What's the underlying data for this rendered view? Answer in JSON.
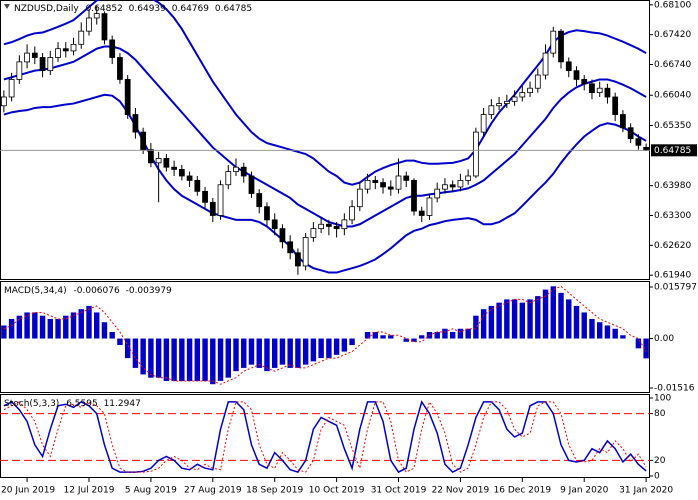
{
  "chart_data": [
    {
      "type": "candlestick",
      "title": "NZDUSD,Daily",
      "last_bar": {
        "open": 0.64852,
        "high": 0.64939,
        "low": 0.64769,
        "close": 0.64785
      },
      "categories": [
        null,
        null,
        null,
        "20 Jun 2019",
        null,
        null,
        null,
        null,
        null,
        null,
        null,
        "12 Jul 2019",
        null,
        null,
        null,
        null,
        null,
        null,
        null,
        "5 Aug 2019",
        null,
        null,
        null,
        null,
        null,
        null,
        null,
        "27 Aug 2019",
        null,
        null,
        null,
        null,
        null,
        null,
        null,
        "18 Sep 2019",
        null,
        null,
        null,
        null,
        null,
        null,
        null,
        "10 Oct 2019",
        null,
        null,
        null,
        null,
        null,
        null,
        null,
        "31 Oct 2019",
        null,
        null,
        null,
        null,
        null,
        null,
        null,
        "22 Nov 2019",
        null,
        null,
        null,
        null,
        null,
        null,
        null,
        "16 Dec 2019",
        null,
        null,
        null,
        null,
        null,
        null,
        null,
        "9 Jan 2020",
        null,
        null,
        null,
        null,
        null,
        null,
        null,
        "31 Jan 2020"
      ],
      "open": [
        0.658,
        0.66,
        0.664,
        0.668,
        0.67,
        0.669,
        0.666,
        0.669,
        0.671,
        0.6705,
        0.672,
        0.675,
        0.678,
        0.679,
        0.673,
        0.669,
        0.664,
        0.656,
        0.652,
        0.648,
        0.645,
        0.646,
        0.644,
        0.6435,
        0.642,
        0.641,
        0.6385,
        0.636,
        0.633,
        0.64,
        0.643,
        0.644,
        0.642,
        0.638,
        0.635,
        0.632,
        0.63,
        0.627,
        0.6245,
        0.6215,
        0.628,
        0.63,
        0.631,
        0.6305,
        0.63,
        0.632,
        0.635,
        0.639,
        0.641,
        0.6405,
        0.6395,
        0.639,
        0.642,
        0.641,
        0.634,
        0.633,
        0.637,
        0.639,
        0.64,
        0.6395,
        0.641,
        0.642,
        0.652,
        0.656,
        0.658,
        0.6585,
        0.659,
        0.66,
        0.661,
        0.662,
        0.665,
        0.67,
        0.675,
        0.668,
        0.666,
        0.664,
        0.663,
        0.661,
        0.662,
        0.66,
        0.656,
        0.653,
        0.6505,
        0.64852
      ],
      "high": [
        0.6615,
        0.6655,
        0.6695,
        0.672,
        0.6715,
        0.67,
        0.6705,
        0.6725,
        0.6725,
        0.6735,
        0.677,
        0.68,
        0.6808,
        0.6795,
        0.674,
        0.67,
        0.665,
        0.6575,
        0.653,
        0.6495,
        0.6475,
        0.647,
        0.6455,
        0.6445,
        0.643,
        0.642,
        0.6395,
        0.637,
        0.641,
        0.6445,
        0.646,
        0.645,
        0.643,
        0.639,
        0.636,
        0.6335,
        0.631,
        0.6285,
        0.6255,
        0.629,
        0.6315,
        0.6325,
        0.632,
        0.6315,
        0.6335,
        0.6365,
        0.6405,
        0.6425,
        0.642,
        0.6415,
        0.641,
        0.646,
        0.643,
        0.6415,
        0.635,
        0.638,
        0.6405,
        0.6415,
        0.641,
        0.6425,
        0.6435,
        0.653,
        0.6575,
        0.6595,
        0.66,
        0.6605,
        0.6615,
        0.6625,
        0.6635,
        0.6665,
        0.672,
        0.676,
        0.6755,
        0.669,
        0.667,
        0.665,
        0.664,
        0.6635,
        0.663,
        0.661,
        0.657,
        0.654,
        0.6515,
        0.64939
      ],
      "low": [
        0.6565,
        0.659,
        0.663,
        0.6665,
        0.6675,
        0.6645,
        0.665,
        0.668,
        0.669,
        0.6695,
        0.671,
        0.674,
        0.6765,
        0.672,
        0.6675,
        0.663,
        0.655,
        0.6505,
        0.647,
        0.644,
        0.636,
        0.643,
        0.642,
        0.641,
        0.6395,
        0.6375,
        0.6345,
        0.6315,
        0.632,
        0.639,
        0.642,
        0.6405,
        0.637,
        0.6335,
        0.6305,
        0.6285,
        0.6255,
        0.623,
        0.6195,
        0.6205,
        0.627,
        0.629,
        0.6285,
        0.628,
        0.6285,
        0.631,
        0.634,
        0.638,
        0.639,
        0.638,
        0.6375,
        0.638,
        0.6395,
        0.633,
        0.6315,
        0.632,
        0.636,
        0.638,
        0.6385,
        0.6385,
        0.64,
        0.6415,
        0.651,
        0.655,
        0.657,
        0.6575,
        0.658,
        0.659,
        0.66,
        0.661,
        0.664,
        0.669,
        0.6665,
        0.6645,
        0.6625,
        0.6615,
        0.6595,
        0.66,
        0.6585,
        0.6545,
        0.652,
        0.6495,
        0.648,
        0.64769
      ],
      "close": [
        0.66,
        0.664,
        0.668,
        0.67,
        0.669,
        0.666,
        0.669,
        0.671,
        0.6705,
        0.672,
        0.675,
        0.678,
        0.679,
        0.673,
        0.669,
        0.664,
        0.656,
        0.652,
        0.648,
        0.645,
        0.646,
        0.644,
        0.6435,
        0.642,
        0.641,
        0.6385,
        0.636,
        0.633,
        0.64,
        0.643,
        0.644,
        0.642,
        0.638,
        0.635,
        0.632,
        0.63,
        0.627,
        0.6245,
        0.6215,
        0.628,
        0.63,
        0.631,
        0.6305,
        0.63,
        0.632,
        0.635,
        0.639,
        0.641,
        0.6405,
        0.6395,
        0.639,
        0.642,
        0.641,
        0.634,
        0.633,
        0.637,
        0.639,
        0.64,
        0.6395,
        0.641,
        0.642,
        0.652,
        0.656,
        0.658,
        0.6585,
        0.659,
        0.66,
        0.661,
        0.662,
        0.665,
        0.67,
        0.675,
        0.668,
        0.666,
        0.664,
        0.663,
        0.661,
        0.662,
        0.66,
        0.656,
        0.653,
        0.6505,
        0.649,
        0.64785
      ],
      "bollinger": {
        "color": "#0000c8",
        "upper": [
          0.672,
          0.6725,
          0.6732,
          0.674,
          0.6745,
          0.6747,
          0.6753,
          0.676,
          0.6767,
          0.6775,
          0.679,
          0.6805,
          0.682,
          0.6825,
          0.6827,
          0.683,
          0.6835,
          0.6835,
          0.683,
          0.6825,
          0.6815,
          0.68,
          0.678,
          0.6755,
          0.6725,
          0.6695,
          0.6665,
          0.6635,
          0.661,
          0.6585,
          0.656,
          0.654,
          0.652,
          0.6505,
          0.6495,
          0.649,
          0.6485,
          0.648,
          0.6475,
          0.647,
          0.646,
          0.6445,
          0.643,
          0.642,
          0.6405,
          0.64,
          0.6405,
          0.6418,
          0.643,
          0.6438,
          0.6445,
          0.645,
          0.6455,
          0.6455,
          0.645,
          0.6448,
          0.6448,
          0.6449,
          0.645,
          0.6454,
          0.646,
          0.648,
          0.651,
          0.654,
          0.6565,
          0.6585,
          0.6605,
          0.6628,
          0.665,
          0.6672,
          0.6695,
          0.6725,
          0.674,
          0.6748,
          0.6752,
          0.675,
          0.6747,
          0.6745,
          0.674,
          0.6733,
          0.6726,
          0.6718,
          0.671,
          0.67
        ],
        "middle": [
          0.664,
          0.6645,
          0.665,
          0.6655,
          0.666,
          0.6662,
          0.6665,
          0.667,
          0.6675,
          0.668,
          0.669,
          0.67,
          0.671,
          0.6715,
          0.6715,
          0.671,
          0.67,
          0.6685,
          0.6665,
          0.6645,
          0.6625,
          0.6605,
          0.6585,
          0.6565,
          0.6545,
          0.6525,
          0.6505,
          0.6485,
          0.647,
          0.6455,
          0.644,
          0.643,
          0.642,
          0.641,
          0.64,
          0.639,
          0.638,
          0.637,
          0.6355,
          0.6345,
          0.6335,
          0.6325,
          0.6315,
          0.631,
          0.6305,
          0.6305,
          0.631,
          0.632,
          0.633,
          0.634,
          0.635,
          0.636,
          0.637,
          0.6375,
          0.6375,
          0.6378,
          0.638,
          0.6383,
          0.6385,
          0.6388,
          0.6392,
          0.64,
          0.641,
          0.6425,
          0.644,
          0.6455,
          0.647,
          0.649,
          0.651,
          0.653,
          0.655,
          0.6575,
          0.6595,
          0.661,
          0.6622,
          0.663,
          0.6635,
          0.664,
          0.664,
          0.6635,
          0.6628,
          0.662,
          0.661,
          0.66
        ],
        "lower": [
          0.656,
          0.6565,
          0.6568,
          0.657,
          0.6575,
          0.6577,
          0.6577,
          0.658,
          0.6583,
          0.6585,
          0.659,
          0.6595,
          0.66,
          0.6605,
          0.6603,
          0.659,
          0.6565,
          0.6535,
          0.65,
          0.6465,
          0.6435,
          0.641,
          0.639,
          0.6375,
          0.6365,
          0.6355,
          0.6345,
          0.6335,
          0.633,
          0.6325,
          0.632,
          0.632,
          0.632,
          0.6315,
          0.6305,
          0.629,
          0.6275,
          0.626,
          0.6235,
          0.622,
          0.621,
          0.6205,
          0.62,
          0.62,
          0.6205,
          0.621,
          0.6215,
          0.6222,
          0.623,
          0.6242,
          0.6255,
          0.627,
          0.6285,
          0.6295,
          0.63,
          0.6308,
          0.6312,
          0.6317,
          0.632,
          0.6322,
          0.6324,
          0.632,
          0.631,
          0.631,
          0.6315,
          0.6325,
          0.6335,
          0.6352,
          0.637,
          0.6388,
          0.6405,
          0.6425,
          0.645,
          0.6472,
          0.6492,
          0.651,
          0.6523,
          0.6535,
          0.654,
          0.6537,
          0.653,
          0.6522,
          0.651,
          0.65
        ]
      },
      "ylim": [
        0.6183,
        0.6821
      ],
      "yticks": [
        {
          "value": 0.681,
          "label": "0.68100"
        },
        {
          "value": 0.6742,
          "label": "0.67420"
        },
        {
          "value": 0.6674,
          "label": "0.66740"
        },
        {
          "value": 0.6604,
          "label": "0.66040"
        },
        {
          "value": 0.6535,
          "label": "0.65350"
        },
        {
          "value": 0.6398,
          "label": "0.63980"
        },
        {
          "value": 0.633,
          "label": "0.63300"
        },
        {
          "value": 0.6262,
          "label": "0.62620"
        },
        {
          "value": 0.6194,
          "label": "0.61940"
        }
      ]
    },
    {
      "type": "macd",
      "title": "MACD(5,34,4)",
      "last_values": [
        -0.006076,
        -0.003979
      ],
      "color": "#0000c8",
      "signal_color": "#ff0000",
      "values": [
        0.004,
        0.006,
        0.007,
        0.008,
        0.008,
        0.007,
        0.006,
        0.006,
        0.007,
        0.008,
        0.009,
        0.01,
        0.008,
        0.005,
        0.002,
        -0.002,
        -0.006,
        -0.009,
        -0.011,
        -0.012,
        -0.012,
        -0.013,
        -0.013,
        -0.013,
        -0.013,
        -0.013,
        -0.013,
        -0.014,
        -0.013,
        -0.012,
        -0.01,
        -0.009,
        -0.008,
        -0.009,
        -0.01,
        -0.009,
        -0.008,
        -0.009,
        -0.009,
        -0.008,
        -0.007,
        -0.006,
        -0.006,
        -0.005,
        -0.004,
        -0.002,
        0,
        0.002,
        0.002,
        0.001,
        0.001,
        0,
        -0.001,
        -0.001,
        0.001,
        0.002,
        0.002,
        0.003,
        0.002,
        0.003,
        0.003,
        0.007,
        0.009,
        0.01,
        0.011,
        0.012,
        0.012,
        0.011,
        0.012,
        0.013,
        0.015,
        0.016,
        0.014,
        0.012,
        0.01,
        0.008,
        0.006,
        0.005,
        0.004,
        0.003,
        0.001,
        0,
        -0.003,
        -0.006076
      ],
      "signal": [
        0.003,
        0.004,
        0.006,
        0.007,
        0.008,
        0.008,
        0.007,
        0.006,
        0.006,
        0.007,
        0.008,
        0.009,
        0.01,
        0.008,
        0.005,
        0.002,
        -0.002,
        -0.006,
        -0.009,
        -0.011,
        -0.012,
        -0.012,
        -0.013,
        -0.013,
        -0.013,
        -0.013,
        -0.013,
        -0.013,
        -0.014,
        -0.013,
        -0.012,
        -0.01,
        -0.009,
        -0.008,
        -0.009,
        -0.01,
        -0.009,
        -0.008,
        -0.009,
        -0.009,
        -0.008,
        -0.007,
        -0.006,
        -0.006,
        -0.005,
        -0.004,
        -0.002,
        0,
        0.002,
        0.002,
        0.001,
        0.001,
        0,
        -0.001,
        -0.001,
        0.001,
        0.002,
        0.002,
        0.003,
        0.002,
        0.003,
        0.003,
        0.007,
        0.009,
        0.01,
        0.011,
        0.012,
        0.012,
        0.011,
        0.012,
        0.013,
        0.015,
        0.016,
        0.014,
        0.012,
        0.01,
        0.008,
        0.006,
        0.005,
        0.004,
        0.003,
        0.001,
        0,
        -0.003979
      ],
      "ylim": [
        -0.01516,
        0.015797
      ],
      "yticks": [
        0.015797,
        {
          "value": 0,
          "label": "0.00"
        },
        -0.01516
      ]
    },
    {
      "type": "stochastic",
      "title": "Stoch(5,3,3)",
      "last_values": [
        6.5595,
        11.2947
      ],
      "k_color": "#0000c8",
      "d_color": "#ff0000",
      "levels": [
        80,
        20
      ],
      "k": [
        90,
        95,
        85,
        70,
        40,
        25,
        60,
        90,
        92,
        88,
        95,
        90,
        80,
        40,
        10,
        5,
        5,
        5,
        6,
        10,
        20,
        25,
        20,
        10,
        8,
        15,
        10,
        8,
        60,
        95,
        95,
        85,
        40,
        15,
        10,
        30,
        20,
        8,
        5,
        20,
        60,
        75,
        70,
        65,
        35,
        10,
        60,
        95,
        95,
        70,
        20,
        5,
        10,
        60,
        95,
        80,
        55,
        15,
        5,
        10,
        40,
        75,
        95,
        95,
        85,
        60,
        50,
        55,
        90,
        95,
        95,
        80,
        40,
        20,
        18,
        20,
        35,
        30,
        45,
        35,
        18,
        28,
        15,
        6.5595
      ],
      "d": [
        85,
        90,
        95,
        85,
        70,
        40,
        25,
        60,
        90,
        92,
        88,
        95,
        90,
        80,
        40,
        10,
        5,
        5,
        5,
        6,
        10,
        20,
        25,
        20,
        10,
        8,
        15,
        10,
        8,
        60,
        95,
        95,
        85,
        40,
        15,
        10,
        30,
        20,
        8,
        5,
        20,
        60,
        75,
        70,
        65,
        35,
        10,
        60,
        95,
        95,
        70,
        20,
        5,
        10,
        60,
        95,
        80,
        55,
        15,
        5,
        10,
        40,
        75,
        95,
        95,
        85,
        60,
        50,
        55,
        90,
        95,
        95,
        80,
        40,
        20,
        18,
        20,
        35,
        30,
        45,
        35,
        18,
        28,
        11.2947
      ],
      "ylim": [
        0,
        100
      ],
      "yticks": [
        100,
        80,
        20,
        0
      ]
    }
  ]
}
